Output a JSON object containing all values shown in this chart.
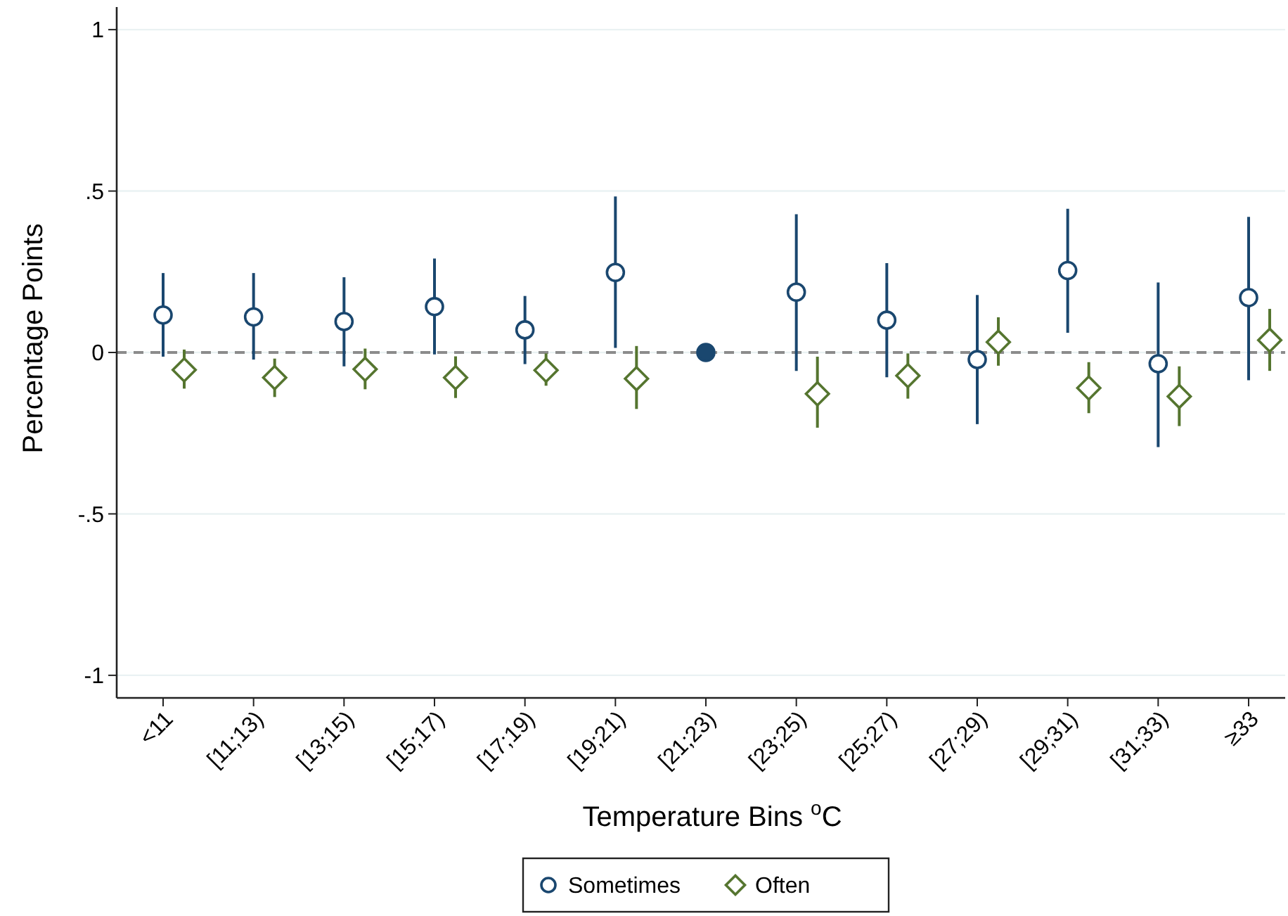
{
  "chart_data": {
    "type": "scatter",
    "xlabel": "Temperature Bins $^{o}$C",
    "ylabel": "Percentage Points",
    "categories": [
      "<11",
      "[11;13)",
      "[13;15)",
      "[15;17)",
      "[17;19)",
      "[19;21)",
      "[21;23)",
      "[23;25)",
      "[25;27)",
      "[27;29)",
      "[29;31)",
      "[31;33)",
      "≥33"
    ],
    "series": [
      {
        "name": "Sometimes",
        "color": "#1a476f",
        "marker": "circle",
        "values": [
          0.116,
          0.11,
          0.096,
          0.142,
          0.07,
          0.248,
          null,
          0.187,
          0.1,
          -0.022,
          0.254,
          -0.035,
          0.17
        ],
        "errors": [
          [
            -0.013,
            0.246
          ],
          [
            -0.022,
            0.246
          ],
          [
            -0.043,
            0.233
          ],
          [
            -0.006,
            0.291
          ],
          [
            -0.036,
            0.175
          ],
          [
            0.014,
            0.483
          ],
          null,
          [
            -0.057,
            0.428
          ],
          [
            -0.077,
            0.277
          ],
          [
            -0.222,
            0.178
          ],
          [
            0.061,
            0.445
          ],
          [
            -0.293,
            0.217
          ],
          [
            -0.086,
            0.42
          ]
        ]
      },
      {
        "name": "Often",
        "color": "#55752f",
        "marker": "diamond",
        "values": [
          -0.054,
          -0.078,
          -0.052,
          -0.078,
          -0.055,
          -0.081,
          null,
          -0.128,
          -0.072,
          0.032,
          -0.11,
          -0.136,
          0.038
        ],
        "errors": [
          [
            -0.112,
            0.009
          ],
          [
            -0.138,
            -0.019
          ],
          [
            -0.114,
            0.012
          ],
          [
            -0.141,
            -0.012
          ],
          [
            -0.103,
            -0.003
          ],
          [
            -0.175,
            0.02
          ],
          null,
          [
            -0.233,
            -0.013
          ],
          [
            -0.143,
            -0.003
          ],
          [
            -0.041,
            0.109
          ],
          [
            -0.188,
            -0.03
          ],
          [
            -0.228,
            -0.043
          ],
          [
            -0.057,
            0.135
          ]
        ]
      },
      {
        "color": "#1a476f",
        "marker": "circle",
        "values": [
          null,
          null,
          null,
          null,
          null,
          null,
          0,
          null,
          null,
          null,
          null,
          null,
          null
        ]
      }
    ],
    "ylim": [
      -1.07,
      1.07
    ],
    "yticks": [
      {
        "value": -1,
        "label": "-1"
      },
      {
        "value": -0.5,
        "label": "-.5"
      },
      {
        "value": 0,
        "label": "0"
      },
      {
        "value": 0.5,
        "label": ".5"
      },
      {
        "value": 1,
        "label": "1"
      }
    ],
    "grid": "y",
    "legend": "bottom",
    "ref_lines": [
      {
        "axis": "y",
        "value": 0,
        "color": "#8c8c8c",
        "line_style": "dashed"
      }
    ]
  }
}
